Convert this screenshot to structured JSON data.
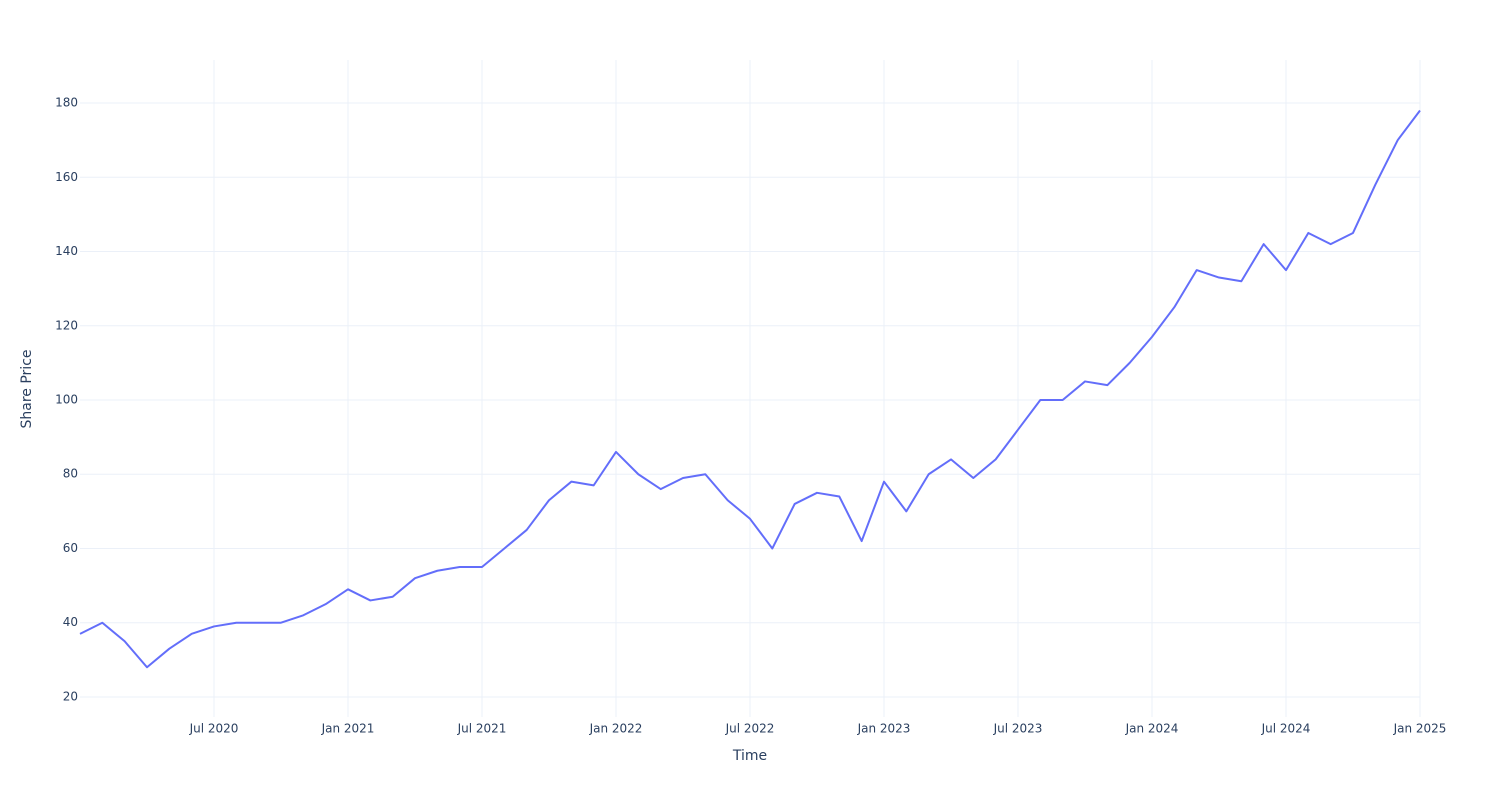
{
  "chart_data": {
    "type": "line",
    "x_label": "Time",
    "y_label": "Share Price",
    "x": [
      "2020-01",
      "2020-02",
      "2020-03",
      "2020-04",
      "2020-05",
      "2020-06",
      "2020-07",
      "2020-08",
      "2020-09",
      "2020-10",
      "2020-11",
      "2020-12",
      "2021-01",
      "2021-02",
      "2021-03",
      "2021-04",
      "2021-05",
      "2021-06",
      "2021-07",
      "2021-08",
      "2021-09",
      "2021-10",
      "2021-11",
      "2021-12",
      "2022-01",
      "2022-02",
      "2022-03",
      "2022-04",
      "2022-05",
      "2022-06",
      "2022-07",
      "2022-08",
      "2022-09",
      "2022-10",
      "2022-11",
      "2022-12",
      "2023-01",
      "2023-02",
      "2023-03",
      "2023-04",
      "2023-05",
      "2023-06",
      "2023-07",
      "2023-08",
      "2023-09",
      "2023-10",
      "2023-11",
      "2023-12",
      "2024-01",
      "2024-02",
      "2024-03",
      "2024-04",
      "2024-05",
      "2024-06",
      "2024-07",
      "2024-08",
      "2024-09",
      "2024-10",
      "2024-11",
      "2024-12",
      "2025-01"
    ],
    "series": [
      {
        "name": "Share Price",
        "color": "#636efa",
        "values": [
          37,
          40,
          35,
          28,
          33,
          37,
          39,
          40,
          40,
          40,
          42,
          45,
          49,
          46,
          47,
          52,
          54,
          55,
          55,
          60,
          65,
          73,
          78,
          77,
          86,
          80,
          76,
          79,
          80,
          73,
          68,
          60,
          72,
          75,
          74,
          62,
          78,
          70,
          80,
          84,
          79,
          84,
          92,
          100,
          100,
          105,
          104,
          110,
          117,
          125,
          135,
          133,
          132,
          142,
          135,
          145,
          142,
          145,
          158,
          170,
          178
        ]
      }
    ],
    "xlim": [
      "2020-01",
      "2025-01"
    ],
    "xticks": [
      {
        "value": "2020-07",
        "label": "Jul 2020"
      },
      {
        "value": "2021-01",
        "label": "Jan 2021"
      },
      {
        "value": "2021-07",
        "label": "Jul 2021"
      },
      {
        "value": "2022-01",
        "label": "Jan 2022"
      },
      {
        "value": "2022-07",
        "label": "Jul 2022"
      },
      {
        "value": "2023-01",
        "label": "Jan 2023"
      },
      {
        "value": "2023-07",
        "label": "Jul 2023"
      },
      {
        "value": "2024-01",
        "label": "Jan 2024"
      },
      {
        "value": "2024-07",
        "label": "Jul 2024"
      },
      {
        "value": "2025-01",
        "label": "Jan 2025"
      }
    ],
    "ylim": [
      14.6,
      191.6
    ],
    "yticks": [
      20,
      40,
      60,
      80,
      100,
      120,
      140,
      160,
      180
    ],
    "grid": true
  }
}
